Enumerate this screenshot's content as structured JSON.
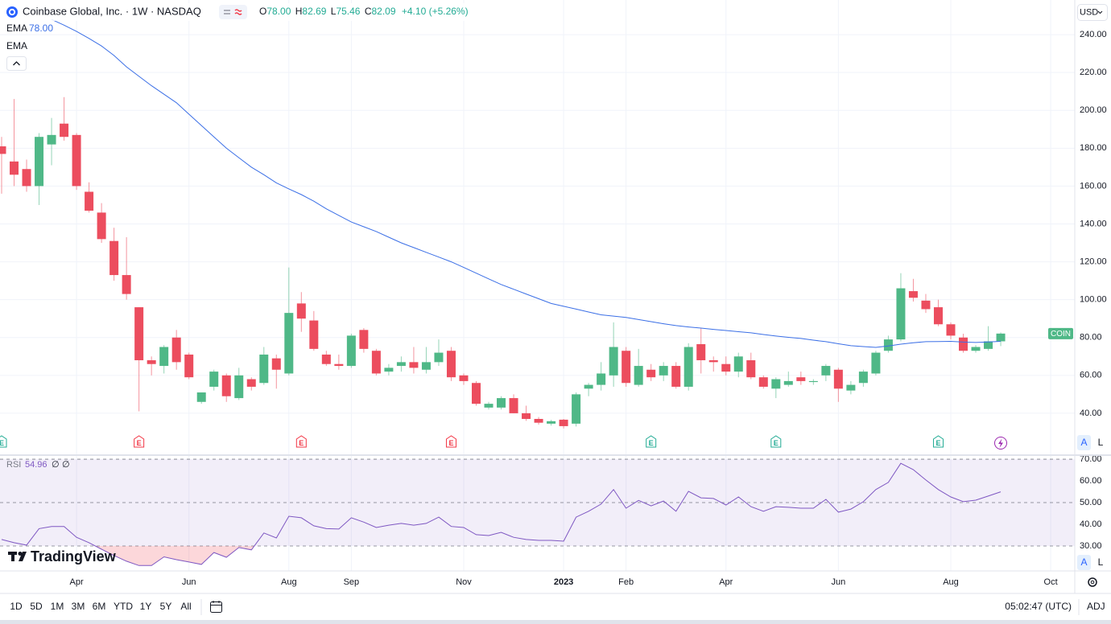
{
  "header": {
    "title": "Coinbase Global, Inc. · 1W · NASDAQ",
    "ohlc": [
      {
        "label": "O",
        "value": "78.00"
      },
      {
        "label": "H",
        "value": "82.69"
      },
      {
        "label": "L",
        "value": "75.46"
      },
      {
        "label": "C",
        "value": "82.09"
      }
    ],
    "change": "+4.10 (+5.26%)",
    "currency": "USD",
    "extra_legend": "EMA"
  },
  "scale_buttons": [
    "A",
    "L"
  ],
  "brand": "TradingView",
  "toolbar": {
    "ranges": [
      "1D",
      "5D",
      "1M",
      "3M",
      "6M",
      "YTD",
      "1Y",
      "5Y",
      "All"
    ],
    "time": "05:02:47 (UTC)",
    "adj": "ADJ"
  },
  "chart_data": [
    {
      "type": "candlestick",
      "categories": [
        null,
        null,
        null,
        null,
        null,
        null,
        "Apr",
        null,
        null,
        null,
        null,
        null,
        null,
        null,
        null,
        "Jun",
        null,
        null,
        null,
        null,
        null,
        null,
        null,
        "Aug",
        null,
        null,
        null,
        null,
        "Sep",
        null,
        null,
        null,
        null,
        null,
        null,
        null,
        null,
        "Nov",
        null,
        null,
        null,
        null,
        null,
        null,
        null,
        "2023",
        null,
        null,
        null,
        null,
        "Feb",
        null,
        null,
        null,
        null,
        null,
        null,
        null,
        "Apr",
        null,
        null,
        null,
        null,
        null,
        null,
        null,
        null,
        "Jun",
        null,
        null,
        null,
        null,
        null,
        null,
        null,
        null,
        "Aug",
        null,
        null,
        null,
        null,
        null,
        null,
        null,
        "Oct"
      ],
      "open": [
        181,
        173,
        169,
        160,
        182,
        193,
        187,
        157,
        146,
        131,
        113,
        96,
        68,
        65,
        80,
        71,
        46,
        54,
        60,
        48,
        58,
        56,
        69,
        61,
        98,
        89,
        71,
        66,
        65,
        84,
        73,
        62,
        65,
        67,
        63,
        67,
        73,
        60,
        56,
        43,
        43,
        48,
        40,
        37,
        34.5,
        36.6,
        34.5,
        53,
        55,
        60,
        73,
        55,
        63,
        60,
        65,
        54,
        76.5,
        68,
        66,
        62,
        68,
        59,
        53,
        55,
        59,
        56.5,
        60,
        63,
        52,
        56,
        61,
        73,
        79,
        104.5,
        99.5,
        96,
        87,
        80,
        73,
        74,
        78,
        null,
        null,
        null,
        null
      ],
      "high": [
        186,
        206,
        174,
        188,
        196,
        207,
        188,
        162,
        151,
        138,
        133,
        96,
        70,
        76,
        84,
        72,
        51,
        63,
        61,
        64,
        59,
        75,
        71,
        117,
        104,
        94,
        73,
        71,
        82,
        85,
        74,
        66,
        70,
        75,
        75,
        79,
        75,
        61,
        57,
        46,
        49,
        50,
        44,
        38,
        36.5,
        37,
        51,
        56,
        67,
        88,
        75,
        74,
        66,
        67,
        67,
        77,
        85,
        70,
        70,
        72,
        72,
        60,
        59,
        62,
        62,
        58,
        66,
        64,
        57,
        63,
        73,
        81,
        114,
        111,
        103,
        100,
        88,
        82,
        76,
        86,
        82.69,
        null,
        null,
        null,
        null
      ],
      "low": [
        156,
        160,
        157,
        150,
        171,
        184,
        158,
        146,
        130,
        110,
        100,
        41,
        60,
        61,
        63,
        58,
        45,
        52,
        46,
        47,
        52,
        55,
        53,
        60,
        83,
        73,
        65,
        63,
        64,
        72,
        60,
        60,
        62,
        61,
        61,
        65,
        57,
        55,
        44,
        42,
        42,
        40,
        36,
        34,
        33.5,
        32,
        33,
        49,
        52,
        54,
        54,
        54,
        57,
        57,
        53,
        52,
        61,
        62,
        60,
        59,
        58,
        53,
        48,
        54,
        55,
        55,
        57,
        46,
        50,
        54,
        60,
        72,
        78,
        99,
        93,
        86,
        79,
        72,
        72,
        73,
        75.46,
        null,
        null,
        null,
        null
      ],
      "close": [
        177,
        166,
        160,
        186,
        187,
        186,
        160,
        147,
        132,
        113,
        103,
        68,
        66,
        75,
        67,
        59,
        51,
        62,
        49,
        60,
        54,
        71,
        63,
        93,
        90,
        74,
        66,
        65,
        81,
        74,
        61,
        64,
        67,
        64,
        67,
        72,
        59,
        57,
        45,
        45,
        48,
        40,
        37,
        35,
        35.8,
        33.2,
        50,
        55,
        61,
        75,
        56,
        65,
        59,
        65,
        54,
        75,
        68,
        67,
        62,
        70,
        59,
        54,
        58,
        57,
        57,
        57,
        65,
        53,
        55,
        62,
        72,
        79,
        106,
        101,
        95,
        87,
        81,
        73,
        75,
        78,
        82.09,
        null,
        null,
        null,
        null
      ],
      "up_color": "#4fb887",
      "down_color": "#ec4d5e",
      "series": [
        {
          "name": "EMA",
          "legend_value": "78.00",
          "color": "#3b6fe6",
          "values": [
            null,
            null,
            null,
            null,
            248,
            245,
            241.7,
            238,
            234,
            229,
            223,
            218,
            213,
            208.5,
            204,
            198,
            192,
            186,
            180,
            175,
            170,
            166,
            161.7,
            158.5,
            155.5,
            152,
            148,
            144.5,
            141,
            138.5,
            136,
            133,
            130,
            127.5,
            125,
            122.5,
            120,
            117,
            114,
            111,
            108,
            105.5,
            103,
            100.5,
            98,
            96.5,
            95,
            93.5,
            92,
            91.3,
            90.6,
            89.5,
            88.4,
            87.3,
            86.3,
            85.6,
            85,
            84.3,
            83.7,
            83.1,
            82.5,
            81.6,
            80.8,
            80.1,
            79.5,
            78.6,
            77.8,
            76.7,
            75.7,
            75.2,
            74.8,
            75.5,
            76.5,
            77.2,
            77.8,
            77.9,
            78,
            77.6,
            77.4,
            77.7,
            78.0,
            null,
            null,
            null,
            null
          ]
        }
      ],
      "ylim": [
        18.3,
        258.3
      ],
      "yticks": [
        {
          "value": 40,
          "label": "40.00"
        },
        {
          "value": 60,
          "label": "60.00"
        },
        {
          "value": 80,
          "label": "80.00"
        },
        {
          "value": 100,
          "label": "100.00"
        },
        {
          "value": 120,
          "label": "120.00"
        },
        {
          "value": 140,
          "label": "140.00"
        },
        {
          "value": 160,
          "label": "160.00"
        },
        {
          "value": 180,
          "label": "180.00"
        },
        {
          "value": 200,
          "label": "200.00"
        },
        {
          "value": 220,
          "label": "220.00"
        },
        {
          "value": 240,
          "label": "240.00"
        }
      ],
      "grid": true,
      "events": [
        {
          "label": "E",
          "color": "#22ab94"
        },
        null,
        null,
        null,
        null,
        null,
        null,
        null,
        null,
        null,
        null,
        {
          "label": "E",
          "color": "#f23645"
        },
        null,
        null,
        null,
        null,
        null,
        null,
        null,
        null,
        null,
        null,
        null,
        null,
        {
          "label": "E",
          "color": "#f23645"
        },
        null,
        null,
        null,
        null,
        null,
        null,
        null,
        null,
        null,
        null,
        null,
        {
          "label": "E",
          "color": "#f23645"
        },
        null,
        null,
        null,
        null,
        null,
        null,
        null,
        null,
        null,
        null,
        null,
        null,
        null,
        null,
        null,
        {
          "label": "E",
          "color": "#22ab94"
        },
        null,
        null,
        null,
        null,
        null,
        null,
        null,
        null,
        null,
        {
          "label": "E",
          "color": "#22ab94"
        },
        null,
        null,
        null,
        null,
        null,
        null,
        null,
        null,
        null,
        null,
        null,
        null,
        {
          "label": "E",
          "color": "#22ab94"
        },
        null,
        null,
        null,
        null,
        null,
        null,
        null,
        null,
        null
      ],
      "last_price_label": "COIN"
    },
    {
      "type": "line",
      "name": "RSI",
      "legend_value": "54.96",
      "legend_params": [
        "∅",
        "∅"
      ],
      "color": "#7e57c2",
      "values": [
        33,
        31.5,
        30.4,
        38,
        39,
        39,
        34,
        31.5,
        28.5,
        25.6,
        23,
        21,
        21,
        25,
        23.7,
        22.6,
        21.5,
        27,
        24.8,
        29.3,
        28.2,
        36,
        33.7,
        43.7,
        43,
        39.3,
        38,
        37.8,
        43,
        41,
        38.5,
        39.6,
        40.4,
        39.6,
        40.4,
        43.3,
        39,
        38.5,
        35.2,
        34.8,
        36.3,
        34,
        33,
        32.6,
        32.6,
        32.2,
        43.3,
        46,
        49.3,
        56,
        47.4,
        51,
        48.5,
        50.7,
        46,
        55.2,
        52.2,
        51.9,
        48.9,
        52.6,
        48.1,
        46,
        48.1,
        47.8,
        47.4,
        47.4,
        51.5,
        45.6,
        47,
        50.4,
        56,
        59.3,
        68.1,
        65.2,
        60.4,
        56,
        52.6,
        50.4,
        51.1,
        53,
        54.96,
        null,
        null,
        null,
        null
      ],
      "ylim": [
        18.5,
        71.5
      ],
      "yticks": [
        {
          "value": 30,
          "label": "30.00"
        },
        {
          "value": 40,
          "label": "40.00"
        },
        {
          "value": 50,
          "label": "50.00"
        },
        {
          "value": 60,
          "label": "60.00"
        },
        {
          "value": 70,
          "label": "70.00"
        }
      ],
      "levels": [
        70,
        50,
        30
      ],
      "band": [
        30,
        70
      ],
      "band_color": "rgba(126,87,194,0.1)",
      "oversold_color": "rgba(242,54,69,0.2)"
    }
  ]
}
